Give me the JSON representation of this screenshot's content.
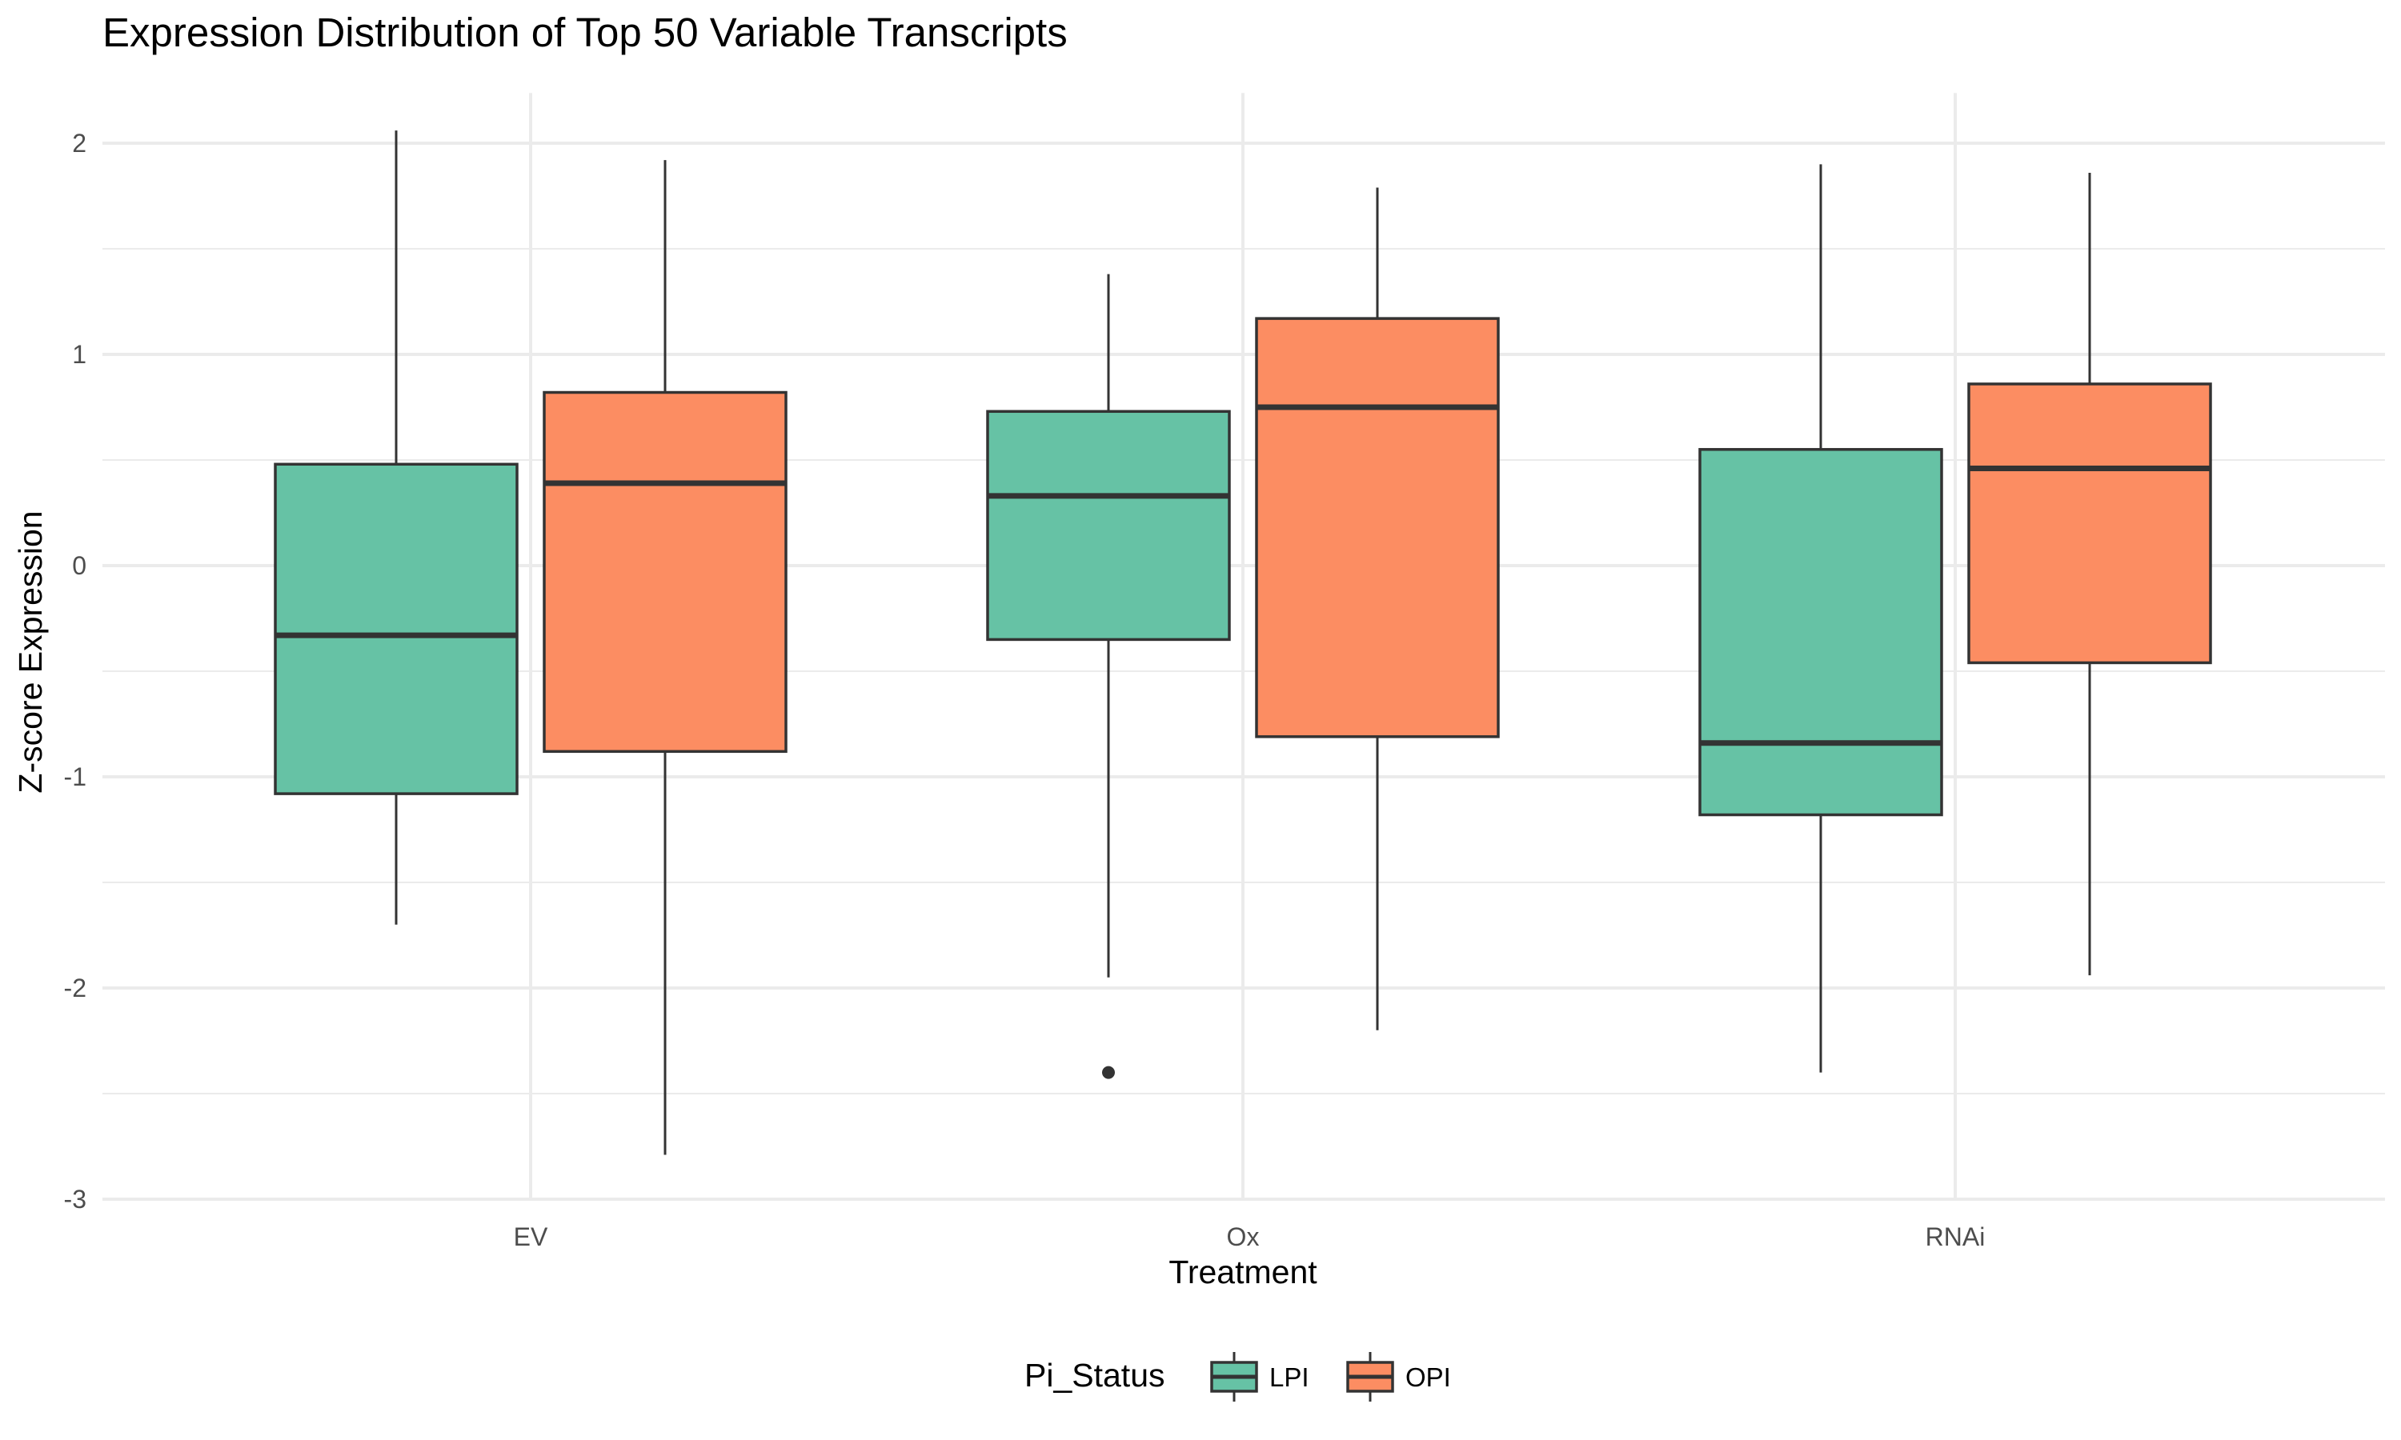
{
  "chart_data": {
    "type": "boxplot",
    "title": "Expression Distribution of Top 50 Variable Transcripts",
    "xlabel": "Treatment",
    "ylabel": "Z-score Expression",
    "categories": [
      "EV",
      "Ox",
      "RNAi"
    ],
    "ylim": [
      -3.0,
      2.2
    ],
    "yticks": [
      2,
      1,
      0,
      -1,
      -2,
      -3
    ],
    "ytick_labels": [
      "2",
      "1",
      "0",
      "-1",
      "-2",
      "-3"
    ],
    "grid": true,
    "legend": {
      "title": "Pi_Status",
      "position": "bottom",
      "items": [
        {
          "label": "LPI",
          "color": "#66c2a5"
        },
        {
          "label": "OPI",
          "color": "#fc8d62"
        }
      ]
    },
    "series": [
      {
        "name": "LPI",
        "color": "#66c2a5",
        "boxes": [
          {
            "category": "EV",
            "whisker_low": -1.7,
            "q1": -1.08,
            "median": -0.33,
            "q3": 0.48,
            "whisker_high": 2.06,
            "outliers": []
          },
          {
            "category": "Ox",
            "whisker_low": -1.95,
            "q1": -0.35,
            "median": 0.33,
            "q3": 0.73,
            "whisker_high": 1.38,
            "outliers": [
              -2.4
            ]
          },
          {
            "category": "RNAi",
            "whisker_low": -2.4,
            "q1": -1.18,
            "median": -0.84,
            "q3": 0.55,
            "whisker_high": 1.9,
            "outliers": []
          }
        ]
      },
      {
        "name": "OPI",
        "color": "#fc8d62",
        "boxes": [
          {
            "category": "EV",
            "whisker_low": -2.79,
            "q1": -0.88,
            "median": 0.39,
            "q3": 0.82,
            "whisker_high": 1.92,
            "outliers": []
          },
          {
            "category": "Ox",
            "whisker_low": -2.2,
            "q1": -0.81,
            "median": 0.75,
            "q3": 1.17,
            "whisker_high": 1.79,
            "outliers": []
          },
          {
            "category": "RNAi",
            "whisker_low": -1.94,
            "q1": -0.46,
            "median": 0.46,
            "q3": 0.86,
            "whisker_high": 1.86,
            "outliers": []
          }
        ]
      }
    ]
  }
}
